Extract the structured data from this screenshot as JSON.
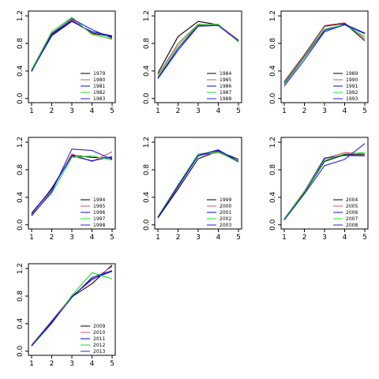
{
  "colors": [
    "#000000",
    "#df536b",
    "#0b0bd0",
    "#22e022",
    "#2222e0"
  ],
  "chart_data": [
    {
      "type": "line",
      "x": [
        1,
        2,
        3,
        4,
        5
      ],
      "ylim": [
        0,
        1.2
      ],
      "xticks": [
        "1",
        "2",
        "3",
        "4",
        "5"
      ],
      "yticks": [
        "0.0",
        "0.4",
        "0.8",
        "1.2"
      ],
      "legend_position": "bottom-right",
      "series": [
        {
          "name": "1979",
          "color": "#000000",
          "values": [
            0.41,
            0.93,
            1.13,
            0.95,
            0.9
          ]
        },
        {
          "name": "1980",
          "color": "#df536b",
          "values": [
            0.42,
            0.95,
            1.15,
            0.94,
            0.86
          ]
        },
        {
          "name": "1981",
          "color": "#0b0bd0",
          "values": [
            0.4,
            0.91,
            1.12,
            0.97,
            0.91
          ]
        },
        {
          "name": "1982",
          "color": "#22e022",
          "values": [
            0.42,
            0.97,
            1.18,
            0.93,
            0.87
          ]
        },
        {
          "name": "1983",
          "color": "#2222e0",
          "values": [
            0.39,
            0.94,
            1.16,
            1.0,
            0.88
          ]
        }
      ]
    },
    {
      "type": "line",
      "x": [
        1,
        2,
        3,
        4,
        5
      ],
      "ylim": [
        0,
        1.2
      ],
      "xticks": [
        "1",
        "2",
        "3",
        "4",
        "5"
      ],
      "yticks": [
        "0.0",
        "0.4",
        "0.8",
        "1.2"
      ],
      "legend_position": "bottom-right",
      "series": [
        {
          "name": "1984",
          "color": "#000000",
          "values": [
            0.37,
            0.9,
            1.12,
            1.07,
            0.84
          ]
        },
        {
          "name": "1985",
          "color": "#df536b",
          "values": [
            0.34,
            0.8,
            1.08,
            1.07,
            0.85
          ]
        },
        {
          "name": "1986",
          "color": "#0b0bd0",
          "values": [
            0.3,
            0.73,
            1.06,
            1.06,
            0.83
          ]
        },
        {
          "name": "1987",
          "color": "#22e022",
          "values": [
            0.33,
            0.77,
            1.07,
            1.08,
            0.82
          ]
        },
        {
          "name": "1988",
          "color": "#2222e0",
          "values": [
            0.29,
            0.7,
            1.05,
            1.06,
            0.84
          ]
        }
      ]
    },
    {
      "type": "line",
      "x": [
        1,
        2,
        3,
        4,
        5
      ],
      "ylim": [
        0,
        1.2
      ],
      "xticks": [
        "1",
        "2",
        "3",
        "4",
        "5"
      ],
      "yticks": [
        "0.0",
        "0.4",
        "0.8",
        "1.2"
      ],
      "legend_position": "bottom-right",
      "series": [
        {
          "name": "1989",
          "color": "#000000",
          "values": [
            0.24,
            0.63,
            1.05,
            1.09,
            0.84
          ]
        },
        {
          "name": "1990",
          "color": "#df536b",
          "values": [
            0.25,
            0.64,
            1.06,
            1.1,
            0.87
          ]
        },
        {
          "name": "1991",
          "color": "#0b0bd0",
          "values": [
            0.21,
            0.6,
            0.99,
            1.08,
            0.95
          ]
        },
        {
          "name": "1992",
          "color": "#22e022",
          "values": [
            0.22,
            0.61,
            1.01,
            1.07,
            0.9
          ]
        },
        {
          "name": "1993",
          "color": "#2222e0",
          "values": [
            0.18,
            0.56,
            0.97,
            1.07,
            0.94
          ]
        }
      ]
    },
    {
      "type": "line",
      "x": [
        1,
        2,
        3,
        4,
        5
      ],
      "ylim": [
        0,
        1.2
      ],
      "xticks": [
        "1",
        "2",
        "3",
        "4",
        "5"
      ],
      "yticks": [
        "0.0",
        "0.4",
        "0.8",
        "1.2"
      ],
      "legend_position": "bottom-right",
      "series": [
        {
          "name": "1994",
          "color": "#000000",
          "values": [
            0.15,
            0.53,
            1.01,
            0.98,
            0.97
          ]
        },
        {
          "name": "1995",
          "color": "#df536b",
          "values": [
            0.16,
            0.5,
            1.03,
            0.92,
            1.06
          ]
        },
        {
          "name": "1996",
          "color": "#0b0bd0",
          "values": [
            0.17,
            0.52,
            1.0,
            0.93,
            0.99
          ]
        },
        {
          "name": "1997",
          "color": "#22e022",
          "values": [
            0.14,
            0.46,
            0.98,
            1.0,
            0.94
          ]
        },
        {
          "name": "1998",
          "color": "#2222e0",
          "values": [
            0.13,
            0.48,
            1.1,
            1.08,
            0.95
          ]
        }
      ]
    },
    {
      "type": "line",
      "x": [
        1,
        2,
        3,
        4,
        5
      ],
      "ylim": [
        0,
        1.2
      ],
      "xticks": [
        "1",
        "2",
        "3",
        "4",
        "5"
      ],
      "yticks": [
        "0.0",
        "0.4",
        "0.8",
        "1.2"
      ],
      "legend_position": "bottom-right",
      "series": [
        {
          "name": "1999",
          "color": "#000000",
          "values": [
            0.1,
            0.52,
            0.96,
            1.07,
            0.95
          ]
        },
        {
          "name": "2000",
          "color": "#df536b",
          "values": [
            0.11,
            0.55,
            1.01,
            1.05,
            0.93
          ]
        },
        {
          "name": "2001",
          "color": "#0b0bd0",
          "values": [
            0.11,
            0.56,
            1.0,
            1.08,
            0.92
          ]
        },
        {
          "name": "2002",
          "color": "#22e022",
          "values": [
            0.12,
            0.58,
            1.03,
            1.06,
            0.91
          ]
        },
        {
          "name": "2003",
          "color": "#2222e0",
          "values": [
            0.11,
            0.57,
            1.01,
            1.09,
            0.92
          ]
        }
      ]
    },
    {
      "type": "line",
      "x": [
        1,
        2,
        3,
        4,
        5
      ],
      "ylim": [
        0,
        1.2
      ],
      "xticks": [
        "1",
        "2",
        "3",
        "4",
        "5"
      ],
      "yticks": [
        "0.0",
        "0.4",
        "0.8",
        "1.2"
      ],
      "legend_position": "bottom-right",
      "series": [
        {
          "name": "2004",
          "color": "#000000",
          "values": [
            0.08,
            0.47,
            0.92,
            1.02,
            1.02
          ]
        },
        {
          "name": "2005",
          "color": "#df536b",
          "values": [
            0.09,
            0.49,
            0.96,
            1.05,
            1.03
          ]
        },
        {
          "name": "2006",
          "color": "#0b0bd0",
          "values": [
            0.08,
            0.48,
            0.97,
            1.01,
            1.0
          ]
        },
        {
          "name": "2007",
          "color": "#22e022",
          "values": [
            0.09,
            0.48,
            0.94,
            1.03,
            1.05
          ]
        },
        {
          "name": "2008",
          "color": "#2222e0",
          "values": [
            0.07,
            0.45,
            0.86,
            0.95,
            1.18
          ]
        }
      ]
    },
    {
      "type": "line",
      "x": [
        1,
        2,
        3,
        4,
        5
      ],
      "ylim": [
        0,
        1.2
      ],
      "xticks": [
        "1",
        "2",
        "3",
        "4",
        "5"
      ],
      "yticks": [
        "0.0",
        "0.4",
        "0.8",
        "1.2"
      ],
      "legend_position": "bottom-right",
      "series": [
        {
          "name": "2009",
          "color": "#000000",
          "values": [
            0.08,
            0.42,
            0.79,
            0.98,
            1.25
          ]
        },
        {
          "name": "2010",
          "color": "#df536b",
          "values": [
            0.09,
            0.44,
            0.8,
            1.03,
            1.23
          ]
        },
        {
          "name": "2011",
          "color": "#0b0bd0",
          "values": [
            0.08,
            0.43,
            0.79,
            1.05,
            1.16
          ]
        },
        {
          "name": "2012",
          "color": "#22e022",
          "values": [
            0.07,
            0.4,
            0.81,
            1.14,
            1.05
          ]
        },
        {
          "name": "2013",
          "color": "#2222e0",
          "values": [
            0.08,
            0.41,
            0.78,
            1.07,
            1.17
          ]
        }
      ]
    }
  ]
}
